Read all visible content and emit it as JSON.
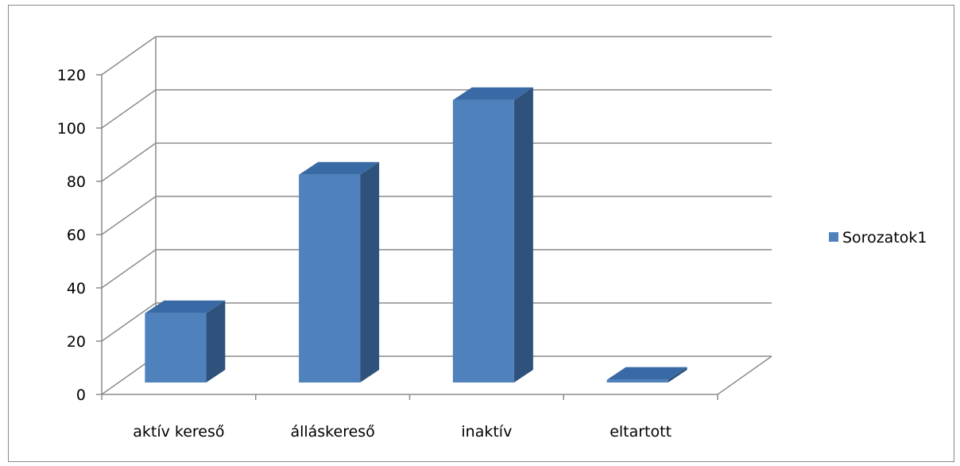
{
  "chart_data": {
    "type": "bar",
    "categories": [
      "aktív kereső",
      "álláskereső",
      "inaktív",
      "eltartott"
    ],
    "series": [
      {
        "name": "Sorozatok1",
        "values": [
          26,
          78,
          106,
          1
        ]
      }
    ],
    "ylim": [
      0,
      120
    ],
    "yticks": [
      "0",
      "20",
      "40",
      "60",
      "80",
      "100",
      "120"
    ],
    "grid": true,
    "legend": "right",
    "colors": {
      "front": "#4f81bd",
      "side": "#2f527c",
      "top": "#3a6aa5"
    }
  }
}
